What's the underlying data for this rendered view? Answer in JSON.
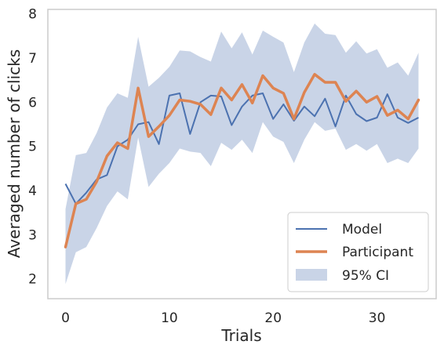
{
  "chart_data": {
    "type": "line",
    "xlabel": "Trials",
    "ylabel": "Averaged number of clicks",
    "xlim": [
      -1.7,
      35.7
    ],
    "ylim": [
      1.55,
      8.1
    ],
    "xticks": [
      0,
      10,
      20,
      30
    ],
    "yticks": [
      2,
      3,
      4,
      5,
      6,
      7,
      8
    ],
    "grid": false,
    "legend_position": "lower right",
    "x": [
      0,
      1,
      2,
      3,
      4,
      5,
      6,
      7,
      8,
      9,
      10,
      11,
      12,
      13,
      14,
      15,
      16,
      17,
      18,
      19,
      20,
      21,
      22,
      23,
      24,
      25,
      26,
      27,
      28,
      29,
      30,
      31,
      32,
      33,
      34
    ],
    "series": [
      {
        "name": "Model",
        "color": "#4c72b0",
        "values": [
          4.15,
          3.7,
          3.95,
          4.25,
          4.35,
          5.0,
          5.15,
          5.5,
          5.55,
          5.05,
          6.15,
          6.2,
          5.28,
          6.0,
          6.15,
          6.13,
          5.48,
          5.9,
          6.15,
          6.2,
          5.62,
          5.95,
          5.58,
          5.9,
          5.68,
          6.08,
          5.45,
          6.15,
          5.73,
          5.57,
          5.65,
          6.18,
          5.65,
          5.53,
          5.65
        ]
      },
      {
        "name": "Participant",
        "color": "#dd8452",
        "values": [
          2.72,
          3.7,
          3.8,
          4.2,
          4.78,
          5.08,
          4.95,
          6.32,
          5.22,
          5.45,
          5.7,
          6.05,
          6.02,
          5.95,
          5.72,
          6.32,
          6.05,
          6.4,
          5.98,
          6.6,
          6.32,
          6.2,
          5.62,
          6.22,
          6.63,
          6.45,
          6.45,
          6.02,
          6.25,
          6.0,
          6.13,
          5.7,
          5.82,
          5.62,
          6.05
        ]
      },
      {
        "name": "95% CI",
        "color": "#4c72b0",
        "lower": [
          1.88,
          2.6,
          2.72,
          3.15,
          3.65,
          3.98,
          3.8,
          5.2,
          4.08,
          4.38,
          4.62,
          4.95,
          4.88,
          4.85,
          4.55,
          5.08,
          4.92,
          5.15,
          4.85,
          5.55,
          5.22,
          5.1,
          4.62,
          5.15,
          5.55,
          5.35,
          5.4,
          4.92,
          5.05,
          4.9,
          5.05,
          4.62,
          4.72,
          4.62,
          4.95
        ],
        "upper": [
          3.58,
          4.8,
          4.85,
          5.3,
          5.88,
          6.2,
          6.1,
          7.48,
          6.35,
          6.55,
          6.8,
          7.17,
          7.15,
          7.02,
          6.92,
          7.6,
          7.22,
          7.58,
          7.08,
          7.62,
          7.48,
          7.35,
          6.68,
          7.35,
          7.78,
          7.55,
          7.52,
          7.12,
          7.38,
          7.1,
          7.2,
          6.78,
          6.9,
          6.6,
          7.12
        ]
      }
    ]
  }
}
